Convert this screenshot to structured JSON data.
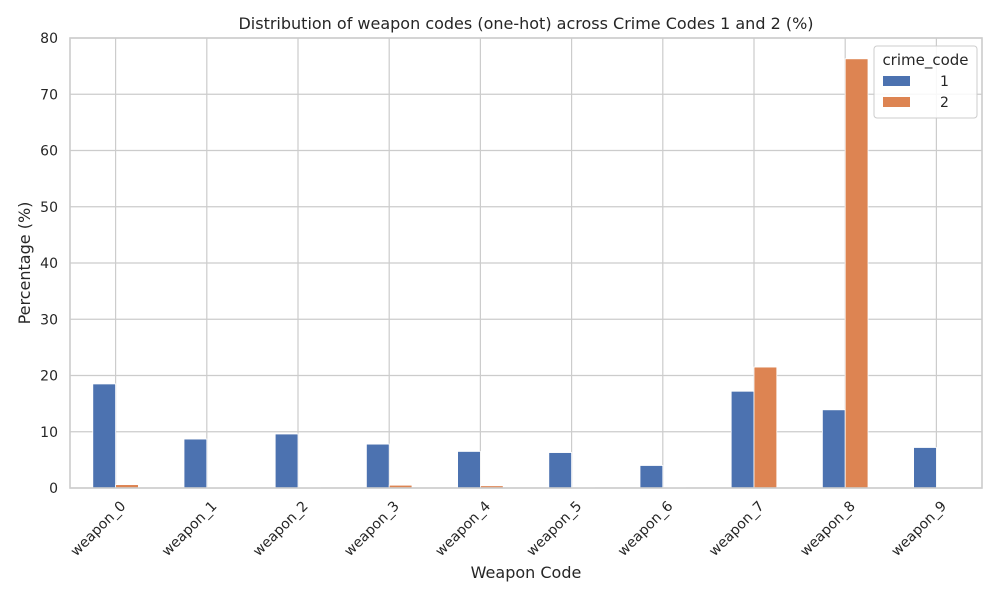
{
  "chart_data": {
    "type": "bar",
    "title": "Distribution of weapon codes (one-hot) across Crime Codes 1 and 2 (%)",
    "xlabel": "Weapon Code",
    "ylabel": "Percentage (%)",
    "categories": [
      "weapon_0",
      "weapon_1",
      "weapon_2",
      "weapon_3",
      "weapon_4",
      "weapon_5",
      "weapon_6",
      "weapon_7",
      "weapon_8",
      "weapon_9"
    ],
    "series": [
      {
        "name": "1",
        "color": "#4c72b0",
        "values": [
          18.5,
          8.7,
          9.6,
          7.8,
          6.5,
          6.3,
          4.0,
          17.2,
          13.9,
          7.2
        ]
      },
      {
        "name": "2",
        "color": "#dd8452",
        "values": [
          0.6,
          0.1,
          0.1,
          0.5,
          0.4,
          0.1,
          0.1,
          21.5,
          76.3,
          0.1
        ]
      }
    ],
    "ylim": [
      0,
      80
    ],
    "yticks": [
      0,
      10,
      20,
      30,
      40,
      50,
      60,
      70,
      80
    ],
    "grid": true,
    "legend": {
      "title": "crime_code",
      "placement": "top-right"
    }
  }
}
